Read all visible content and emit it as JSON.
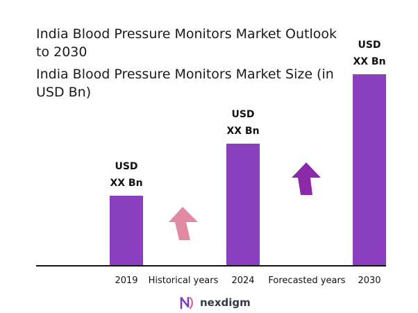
{
  "title": "India Blood Pressure Monitors Market Outlook to 2030",
  "subtitle": "India Blood Pressure Monitors Market Size (in USD Bn)",
  "brand": {
    "name": "nexdigm",
    "logo_icon": "nexdigm-logo-icon"
  },
  "colors": {
    "bar": "#8a3fbf",
    "historical_arrow": "#e08aa3",
    "forecast_arrow": "#8a2aa8",
    "axis": "#111111"
  },
  "chart_data": {
    "type": "bar",
    "title": "India Blood Pressure Monitors Market Size (in USD Bn)",
    "categories": [
      "2019",
      "2024",
      "2030"
    ],
    "values": [
      1,
      1.75,
      2.75
    ],
    "value_labels": [
      [
        "USD",
        "XX Bn"
      ],
      [
        "USD",
        "XX Bn"
      ],
      [
        "USD",
        "XX Bn"
      ]
    ],
    "annotations": [
      "Historical years",
      "Forecasted years"
    ],
    "xlabel": "",
    "ylabel": "",
    "ylim": [
      0,
      2.75
    ],
    "grid": false
  }
}
